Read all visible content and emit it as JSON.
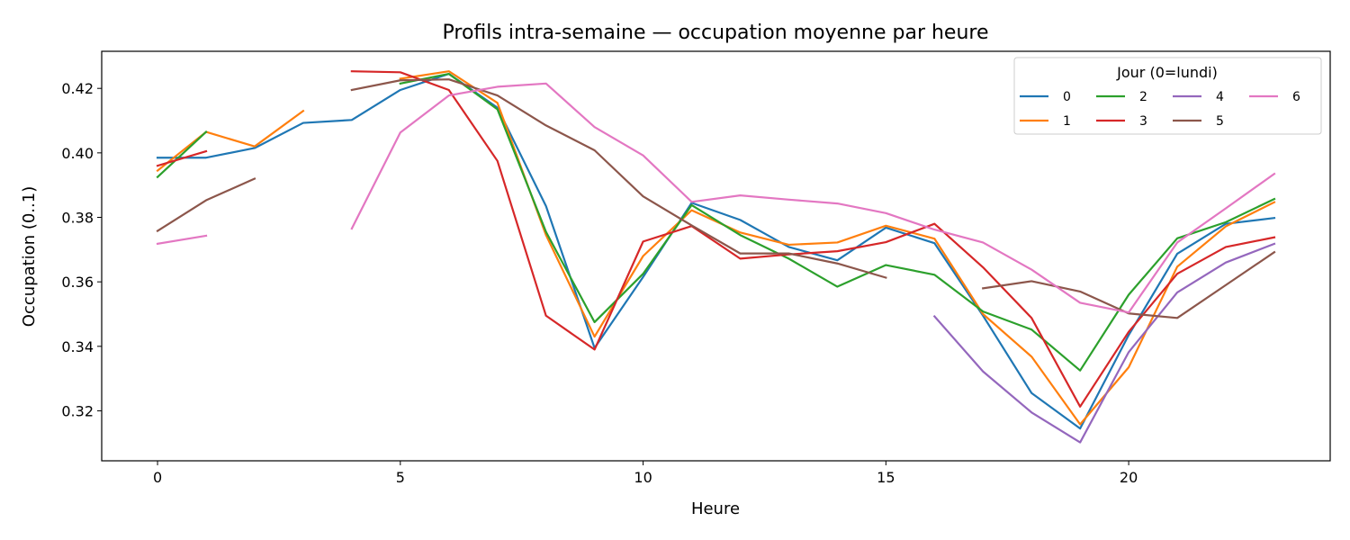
{
  "chart_data": {
    "type": "line",
    "title": "Profils intra-semaine — occupation moyenne par heure",
    "xlabel": "Heure",
    "ylabel": "Occupation (0..1)",
    "xlim": [
      -1.15,
      24.15
    ],
    "ylim": [
      0.3045,
      0.4315
    ],
    "x_ticks": [
      0,
      5,
      10,
      15,
      20
    ],
    "y_ticks": [
      0.32,
      0.34,
      0.36,
      0.38,
      0.4,
      0.42
    ],
    "y_tick_labels": [
      "0.32",
      "0.34",
      "0.36",
      "0.38",
      "0.40",
      "0.42"
    ],
    "grid": false,
    "legend": {
      "title": "Jour (0=lundi)",
      "placement": "top-right",
      "columns": 4
    },
    "x": [
      0,
      1,
      2,
      3,
      4,
      5,
      6,
      7,
      8,
      9,
      10,
      11,
      12,
      13,
      14,
      15,
      16,
      17,
      18,
      19,
      20,
      21,
      22,
      23
    ],
    "series": [
      {
        "name": "0",
        "color": "#1f77b4",
        "values": [
          0.3985,
          0.3985,
          0.4015,
          0.4093,
          0.4102,
          0.4195,
          0.4245,
          0.414,
          0.3835,
          0.3395,
          0.3615,
          0.3845,
          0.3792,
          0.3708,
          0.3667,
          0.3768,
          0.372,
          0.3495,
          0.3255,
          0.3145,
          0.3435,
          0.3687,
          0.378,
          0.3798
        ]
      },
      {
        "name": "1",
        "color": "#ff7f0e",
        "values": [
          0.3945,
          0.4065,
          0.402,
          0.413,
          null,
          0.423,
          0.4253,
          0.4155,
          0.3745,
          0.343,
          0.368,
          0.3822,
          0.3753,
          0.3715,
          0.3722,
          0.3774,
          0.3734,
          0.35,
          0.3368,
          0.3158,
          0.3335,
          0.3647,
          0.3772,
          0.3847
        ]
      },
      {
        "name": "2",
        "color": "#2ca02c",
        "values": [
          0.3925,
          0.4065,
          null,
          null,
          null,
          0.4215,
          0.4245,
          0.4135,
          0.3755,
          0.3475,
          0.3625,
          0.3838,
          0.3745,
          0.3672,
          0.3585,
          0.3652,
          0.3622,
          0.3508,
          0.3452,
          0.3325,
          0.356,
          0.3735,
          0.3785,
          0.3857
        ]
      },
      {
        "name": "3",
        "color": "#d62728",
        "values": [
          0.396,
          0.4005,
          null,
          null,
          0.4253,
          0.425,
          0.4195,
          0.3975,
          0.3495,
          0.339,
          0.3725,
          0.3773,
          0.3672,
          0.3685,
          0.3695,
          0.3723,
          0.378,
          0.3645,
          0.3488,
          0.3213,
          0.3445,
          0.3625,
          0.3708,
          0.3738
        ]
      },
      {
        "name": "4",
        "color": "#9467bd",
        "values": [
          null,
          null,
          null,
          null,
          null,
          null,
          null,
          null,
          null,
          null,
          null,
          null,
          null,
          null,
          null,
          null,
          0.3493,
          0.3322,
          0.3195,
          0.3102,
          0.3382,
          0.3567,
          0.366,
          0.3718
        ]
      },
      {
        "name": "5",
        "color": "#8c564b",
        "values": [
          0.3758,
          0.3853,
          0.392,
          null,
          0.4195,
          0.4225,
          0.4228,
          0.4178,
          0.4085,
          0.4008,
          0.3865,
          0.3775,
          0.3688,
          0.3688,
          0.3657,
          0.3613,
          null,
          0.358,
          0.3602,
          0.357,
          0.3502,
          0.3488,
          0.359,
          0.3692
        ]
      },
      {
        "name": "6",
        "color": "#e377c2",
        "values": [
          0.3718,
          0.3743,
          null,
          null,
          0.3765,
          0.4063,
          0.4178,
          0.4205,
          0.4215,
          0.408,
          0.3992,
          0.3848,
          0.3868,
          0.3855,
          0.3843,
          0.3813,
          0.3762,
          0.3722,
          0.3638,
          0.3535,
          0.3505,
          0.3722,
          0.3828,
          0.3935
        ]
      }
    ]
  }
}
